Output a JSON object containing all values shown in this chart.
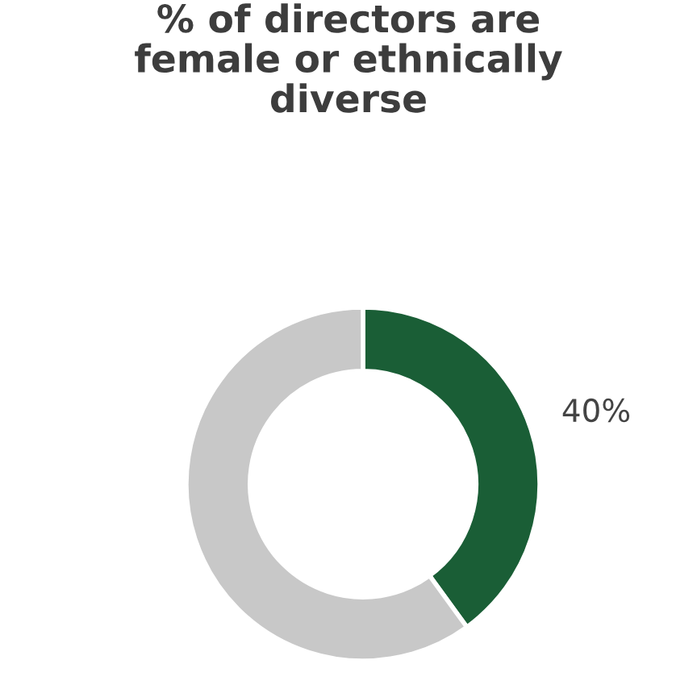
{
  "chart_data": {
    "type": "donut",
    "title": "% of directors are\nfemale or ethnically\ndiverse",
    "categories": [
      null,
      null
    ],
    "values": [
      40,
      60
    ],
    "colors": [
      "#1a5e36",
      "#c8c8c8"
    ],
    "value_labels": [
      "40%",
      null
    ],
    "legend": false
  }
}
